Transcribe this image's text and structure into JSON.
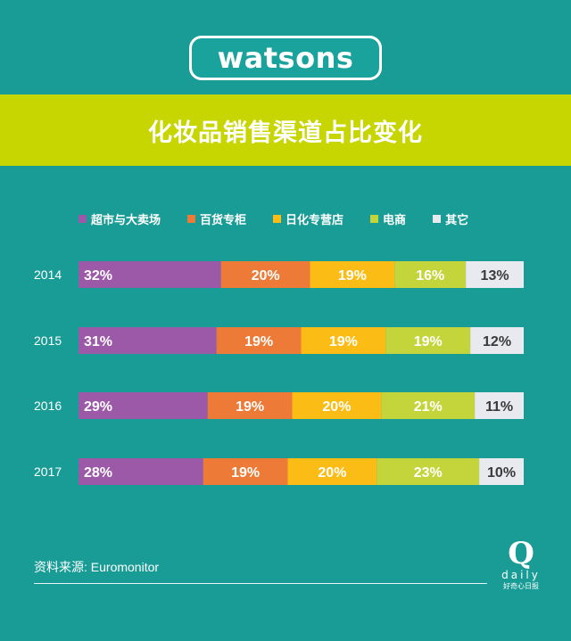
{
  "header": {
    "logo_text": "watsons",
    "title": "化妆品销售渠道占比变化"
  },
  "legend": [
    {
      "label": "超市与大卖场",
      "color": "#9b59a8"
    },
    {
      "label": "百货专柜",
      "color": "#ee7a37"
    },
    {
      "label": "日化专营店",
      "color": "#fcbc16"
    },
    {
      "label": "电商",
      "color": "#c3d53a"
    },
    {
      "label": "其它",
      "color": "#e8eaf0"
    }
  ],
  "chart_data": {
    "type": "bar",
    "orientation": "horizontal",
    "stacked": true,
    "categories": [
      "2014",
      "2015",
      "2016",
      "2017"
    ],
    "series": [
      {
        "name": "超市与大卖场",
        "values": [
          32,
          31,
          29,
          28
        ],
        "labels": [
          "32%",
          "31%",
          "29%",
          "28%"
        ],
        "color": "#9b59a8"
      },
      {
        "name": "百货专柜",
        "values": [
          20,
          19,
          19,
          19
        ],
        "labels": [
          "20%",
          "19%",
          "19%",
          "19%"
        ],
        "color": "#ee7a37"
      },
      {
        "name": "日化专营店",
        "values": [
          19,
          19,
          20,
          20
        ],
        "labels": [
          "19%",
          "19%",
          "20%",
          "20%"
        ],
        "color": "#fcbc16"
      },
      {
        "name": "电商",
        "values": [
          16,
          19,
          21,
          23
        ],
        "labels": [
          "16%",
          "19%",
          "21%",
          "23%"
        ],
        "color": "#c3d53a"
      },
      {
        "name": "其它",
        "values": [
          13,
          12,
          11,
          10
        ],
        "labels": [
          "13%",
          "12%",
          "11%",
          "10%"
        ],
        "color": "#e8eaf0"
      }
    ],
    "title": "化妆品销售渠道占比变化",
    "xlim": [
      0,
      100
    ],
    "legend_position": "top"
  },
  "footer": {
    "source": "资料来源: Euromonitor",
    "brand_q": "Q",
    "brand_daily": "daily",
    "brand_cn": "好奇心日报"
  }
}
